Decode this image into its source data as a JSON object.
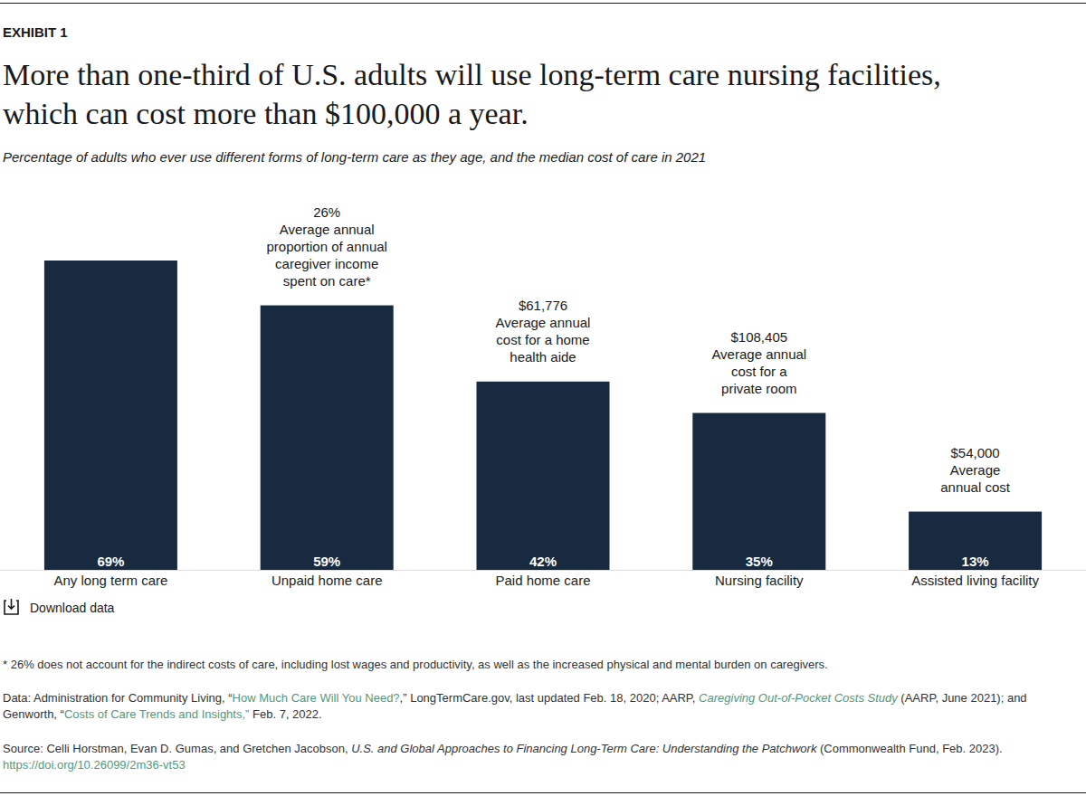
{
  "chart_data": {
    "type": "bar",
    "exhibit_label": "EXHIBIT 1",
    "title": [
      "More than one-third of U.S. adults will use long-term care nursing facilities,",
      "which can cost more than $100,000 a year."
    ],
    "subtitle": "Percentage of adults who ever use different forms of long-term care as they age, and the median cost of care in 2021",
    "categories": [
      "Any long term care",
      "Unpaid home care",
      "Paid home care",
      "Nursing facility",
      "Assisted living facility"
    ],
    "values": [
      69,
      59,
      42,
      35,
      13
    ],
    "value_labels": [
      "69%",
      "59%",
      "42%",
      "35%",
      "13%"
    ],
    "data_labels": true,
    "tick_labels": false,
    "color": "#172a3f",
    "annotations": [
      null,
      [
        "26%",
        "Average annual",
        "proportion of annual",
        "caregiver income",
        "spent on care*"
      ],
      [
        "$61,776",
        "Average annual",
        "cost for a home",
        "health aide"
      ],
      [
        "$108,405",
        "Average annual",
        "cost for a",
        "private room"
      ],
      [
        "$54,000",
        "Average",
        "annual cost"
      ]
    ],
    "download_label": "Download data",
    "footnote": "* 26% does not account for the indirect costs of care, including lost wages and productivity, as well as the increased physical and mental burden on caregivers.",
    "data_note": [
      "Data: Administration for Community Living, “",
      "How Much Care Will You Need?",
      ",” LongTermCare.gov, last updated Feb. 18, 2020; AARP, ",
      "Caregiving Out-of-Pocket Costs Study",
      " (AARP, June 2021); and Genworth, “",
      "Costs of Care Trends and Insights,”",
      " Feb. 7, 2022."
    ],
    "source_note": [
      "Source: Celli Horstman, Evan D. Gumas, and Gretchen Jacobson, ",
      "U.S. and Global Approaches to Financing Long-Term Care: Understanding the Patchwork",
      " (Commonwealth Fund, Feb. 2023). ",
      "https://doi.org/10.26099/2m36-vt53"
    ]
  }
}
